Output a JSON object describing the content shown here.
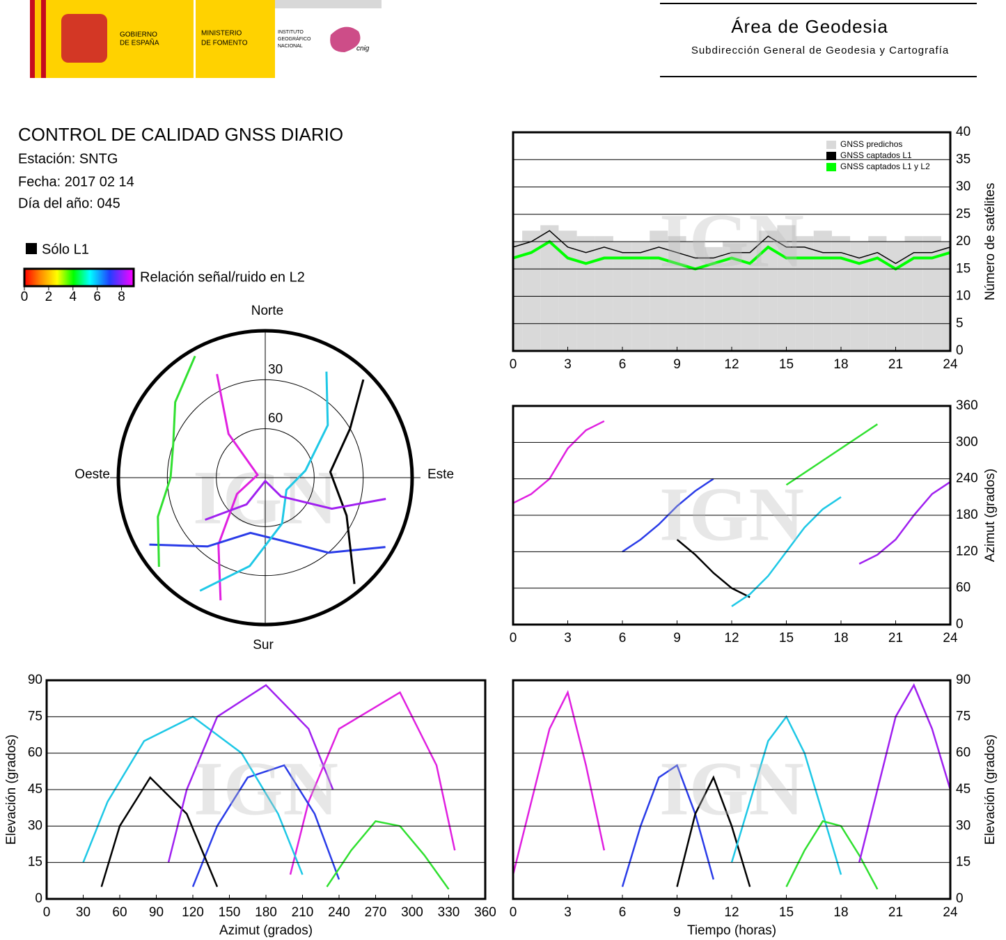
{
  "header": {
    "gobierno": [
      "GOBIERNO",
      "DE ESPAÑA"
    ],
    "ministerio": [
      "MINISTERIO",
      "DE FOMENTO"
    ],
    "instituto": [
      "INSTITUTO",
      "GEOGRÁFICO",
      "NACIONAL"
    ],
    "cnig": "cnig",
    "area": "Área de Geodesia",
    "subdireccion": "Subdirección General de Geodesia y Cartografía"
  },
  "report": {
    "title": "CONTROL DE CALIDAD GNSS DIARIO",
    "station": "Estación: SNTG",
    "date": "Fecha: 2017 02 14",
    "doy": "Día del año: 045"
  },
  "legend": {
    "l1_only": "Sólo L1",
    "l1_only_color": "#000000",
    "snr_label": "Relación señal/ruido en L2",
    "snr_lim": [
      0,
      9
    ],
    "snr_ticks": [
      0,
      2,
      4,
      6,
      8
    ]
  },
  "watermark": "IGN",
  "chart_data": [
    {
      "type": "polar",
      "directions": {
        "north": "Norte",
        "south": "Sur",
        "east": "Este",
        "west": "Oeste"
      },
      "rlim": [
        90,
        0
      ],
      "rticks": [
        30,
        60
      ],
      "series": [
        {
          "color": "#e020e0",
          "x": [
            200,
            215,
            240,
            290,
            320,
            335
          ],
          "values": [
            10,
            40,
            70,
            85,
            55,
            20
          ]
        },
        {
          "color": "#2a3ce8",
          "x": [
            120,
            140,
            165,
            195,
            220,
            240
          ],
          "values": [
            5,
            30,
            50,
            55,
            35,
            8
          ]
        },
        {
          "color": "#000000",
          "x": [
            140,
            115,
            85,
            60,
            45
          ],
          "values": [
            5,
            35,
            50,
            30,
            5
          ]
        },
        {
          "color": "#1ec8e6",
          "x": [
            30,
            50,
            80,
            120,
            160,
            190,
            210
          ],
          "values": [
            15,
            40,
            65,
            75,
            60,
            35,
            10
          ]
        },
        {
          "color": "#30e030",
          "x": [
            230,
            250,
            270,
            290,
            310,
            330
          ],
          "values": [
            5,
            20,
            32,
            30,
            18,
            4
          ]
        },
        {
          "color": "#a020f0",
          "x": [
            100,
            115,
            140,
            180,
            215,
            235
          ],
          "values": [
            15,
            45,
            75,
            88,
            70,
            45
          ]
        }
      ]
    },
    {
      "type": "step",
      "x": [
        0,
        1,
        2,
        3,
        4,
        5,
        6,
        7,
        8,
        9,
        10,
        11,
        12,
        13,
        14,
        15,
        16,
        17,
        18,
        19,
        20,
        21,
        22,
        23,
        24
      ],
      "xlim": [
        0,
        24
      ],
      "xticks": [
        0,
        3,
        6,
        9,
        12,
        15,
        18,
        21,
        24
      ],
      "ylim": [
        0,
        40
      ],
      "yticks": [
        0,
        5,
        10,
        15,
        20,
        25,
        30,
        35,
        40
      ],
      "y_label": "Número de satélites",
      "grid": true,
      "series": [
        {
          "name": "GNSS predichos",
          "color": "#d9d9d9",
          "values": [
            20,
            22,
            23,
            22,
            21,
            21,
            20,
            20,
            22,
            21,
            20,
            19,
            20,
            20,
            22,
            23,
            21,
            22,
            21,
            20,
            21,
            20,
            21,
            21,
            20
          ]
        },
        {
          "name": "GNSS captados L1",
          "color": "#000000",
          "values": [
            19,
            20,
            22,
            19,
            18,
            19,
            18,
            18,
            19,
            18,
            17,
            17,
            18,
            18,
            21,
            19,
            19,
            18,
            18,
            17,
            18,
            16,
            18,
            18,
            19
          ]
        },
        {
          "name": "GNSS captados L1 y L2",
          "color": "#00ff00",
          "values": [
            17,
            18,
            20,
            17,
            16,
            17,
            17,
            17,
            17,
            16,
            15,
            16,
            17,
            16,
            19,
            17,
            17,
            17,
            17,
            16,
            17,
            15,
            17,
            17,
            18
          ]
        }
      ]
    },
    {
      "type": "line",
      "xlim": [
        0,
        24
      ],
      "xticks": [
        0,
        3,
        6,
        9,
        12,
        15,
        18,
        21,
        24
      ],
      "ylim": [
        0,
        360
      ],
      "yticks": [
        0,
        60,
        120,
        180,
        240,
        300,
        360
      ],
      "y_label": "Azimut (grados)",
      "grid": true,
      "series": [
        {
          "color": "#e020e0",
          "x": [
            0,
            1,
            2,
            3,
            4,
            5
          ],
          "values": [
            200,
            215,
            240,
            290,
            320,
            335
          ]
        },
        {
          "color": "#2a3ce8",
          "x": [
            6,
            7,
            8,
            9,
            10,
            11
          ],
          "values": [
            120,
            140,
            165,
            195,
            220,
            240
          ]
        },
        {
          "color": "#000000",
          "x": [
            9,
            10,
            11,
            12,
            13
          ],
          "values": [
            140,
            115,
            85,
            60,
            45
          ]
        },
        {
          "color": "#1ec8e6",
          "x": [
            12,
            13,
            14,
            15,
            16,
            17,
            18
          ],
          "values": [
            30,
            50,
            80,
            120,
            160,
            190,
            210
          ]
        },
        {
          "color": "#30e030",
          "x": [
            15,
            16,
            17,
            18,
            19,
            20
          ],
          "values": [
            230,
            250,
            270,
            290,
            310,
            330
          ]
        },
        {
          "color": "#a020f0",
          "x": [
            19,
            20,
            21,
            22,
            23,
            24
          ],
          "values": [
            100,
            115,
            140,
            180,
            215,
            235
          ]
        }
      ]
    },
    {
      "type": "line",
      "xlim": [
        0,
        360
      ],
      "xticks": [
        0,
        30,
        60,
        90,
        120,
        150,
        180,
        210,
        240,
        270,
        300,
        330,
        360
      ],
      "ylim": [
        0,
        90
      ],
      "yticks": [
        0,
        15,
        30,
        45,
        60,
        75,
        90
      ],
      "x_label": "Azimut (grados)",
      "y_label": "Elevación (grados)",
      "grid": true,
      "series": [
        {
          "color": "#e020e0",
          "x": [
            200,
            215,
            240,
            290,
            320,
            335
          ],
          "values": [
            10,
            40,
            70,
            85,
            55,
            20
          ]
        },
        {
          "color": "#2a3ce8",
          "x": [
            120,
            140,
            165,
            195,
            220,
            240
          ],
          "values": [
            5,
            30,
            50,
            55,
            35,
            8
          ]
        },
        {
          "color": "#000000",
          "x": [
            140,
            115,
            85,
            60,
            45
          ],
          "values": [
            5,
            35,
            50,
            30,
            5
          ]
        },
        {
          "color": "#1ec8e6",
          "x": [
            30,
            50,
            80,
            120,
            160,
            190,
            210
          ],
          "values": [
            15,
            40,
            65,
            75,
            60,
            35,
            10
          ]
        },
        {
          "color": "#30e030",
          "x": [
            230,
            250,
            270,
            290,
            310,
            330
          ],
          "values": [
            5,
            20,
            32,
            30,
            18,
            4
          ]
        },
        {
          "color": "#a020f0",
          "x": [
            100,
            115,
            140,
            180,
            215,
            235
          ],
          "values": [
            15,
            45,
            75,
            88,
            70,
            45
          ]
        }
      ]
    },
    {
      "type": "line",
      "xlim": [
        0,
        24
      ],
      "xticks": [
        0,
        3,
        6,
        9,
        12,
        15,
        18,
        21,
        24
      ],
      "ylim": [
        0,
        90
      ],
      "yticks": [
        0,
        15,
        30,
        45,
        60,
        75,
        90
      ],
      "x_label": "Tiempo (horas)",
      "y_label": "Elevación (grados)",
      "grid": true,
      "series": [
        {
          "color": "#e020e0",
          "x": [
            0,
            1,
            2,
            3,
            4,
            5
          ],
          "values": [
            10,
            40,
            70,
            85,
            55,
            20
          ]
        },
        {
          "color": "#2a3ce8",
          "x": [
            6,
            7,
            8,
            9,
            10,
            11
          ],
          "values": [
            5,
            30,
            50,
            55,
            35,
            8
          ]
        },
        {
          "color": "#000000",
          "x": [
            9,
            10,
            11,
            12,
            13
          ],
          "values": [
            5,
            35,
            50,
            30,
            5
          ]
        },
        {
          "color": "#1ec8e6",
          "x": [
            12,
            13,
            14,
            15,
            16,
            17,
            18
          ],
          "values": [
            15,
            40,
            65,
            75,
            60,
            35,
            10
          ]
        },
        {
          "color": "#30e030",
          "x": [
            15,
            16,
            17,
            18,
            19,
            20
          ],
          "values": [
            5,
            20,
            32,
            30,
            18,
            4
          ]
        },
        {
          "color": "#a020f0",
          "x": [
            19,
            20,
            21,
            22,
            23,
            24
          ],
          "values": [
            15,
            45,
            75,
            88,
            70,
            45
          ]
        }
      ]
    }
  ]
}
